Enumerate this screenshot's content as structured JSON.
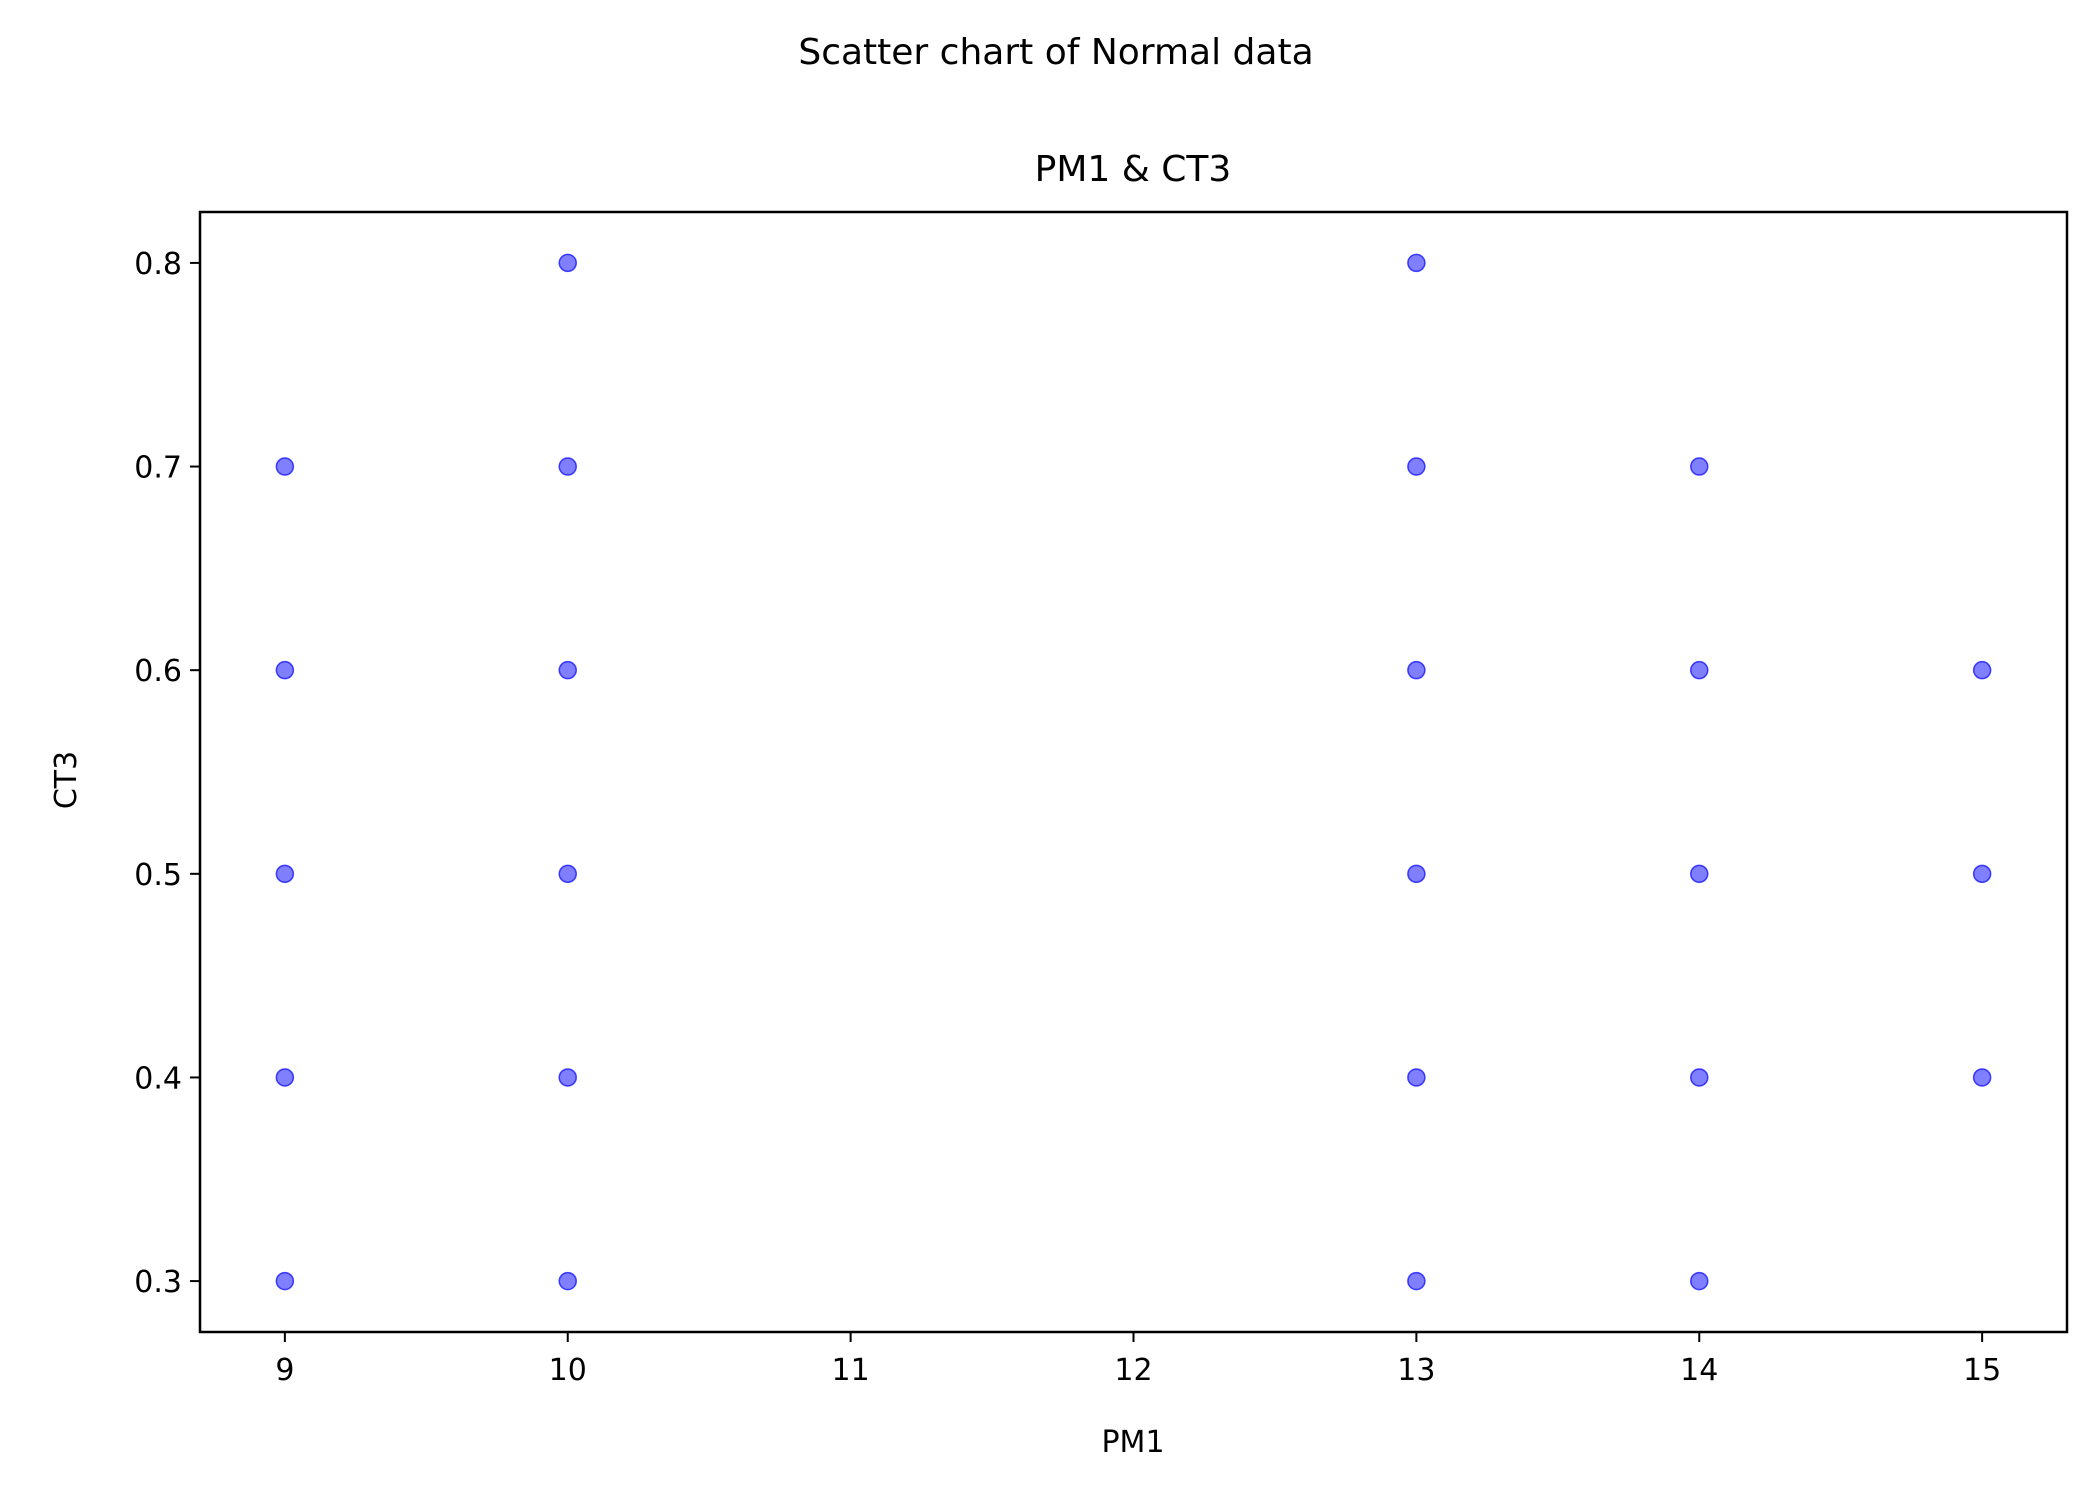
{
  "chart_data": {
    "type": "scatter",
    "suptitle": "Scatter chart of Normal data",
    "title": "PM1 & CT3",
    "xlabel": "PM1",
    "ylabel": "CT3",
    "xlim": [
      8.7,
      15.3
    ],
    "ylim": [
      0.275,
      0.825
    ],
    "xticks": [
      9,
      10,
      11,
      12,
      13,
      14,
      15
    ],
    "xtick_labels": [
      "9",
      "10",
      "11",
      "12",
      "13",
      "14",
      "15"
    ],
    "yticks": [
      0.3,
      0.4,
      0.5,
      0.6,
      0.7,
      0.8
    ],
    "ytick_labels": [
      "0.3",
      "0.4",
      "0.5",
      "0.6",
      "0.7",
      "0.8"
    ],
    "grid": false,
    "marker_color": "#0000ff",
    "marker_alpha": 0.5,
    "points": [
      {
        "x": 9,
        "y": 0.3
      },
      {
        "x": 9,
        "y": 0.4
      },
      {
        "x": 9,
        "y": 0.5
      },
      {
        "x": 9,
        "y": 0.6
      },
      {
        "x": 9,
        "y": 0.7
      },
      {
        "x": 10,
        "y": 0.3
      },
      {
        "x": 10,
        "y": 0.4
      },
      {
        "x": 10,
        "y": 0.5
      },
      {
        "x": 10,
        "y": 0.6
      },
      {
        "x": 10,
        "y": 0.7
      },
      {
        "x": 10,
        "y": 0.8
      },
      {
        "x": 13,
        "y": 0.3
      },
      {
        "x": 13,
        "y": 0.4
      },
      {
        "x": 13,
        "y": 0.5
      },
      {
        "x": 13,
        "y": 0.6
      },
      {
        "x": 13,
        "y": 0.7
      },
      {
        "x": 13,
        "y": 0.8
      },
      {
        "x": 14,
        "y": 0.3
      },
      {
        "x": 14,
        "y": 0.4
      },
      {
        "x": 14,
        "y": 0.5
      },
      {
        "x": 14,
        "y": 0.6
      },
      {
        "x": 14,
        "y": 0.7
      },
      {
        "x": 15,
        "y": 0.4
      },
      {
        "x": 15,
        "y": 0.5
      },
      {
        "x": 15,
        "y": 0.6
      }
    ]
  }
}
